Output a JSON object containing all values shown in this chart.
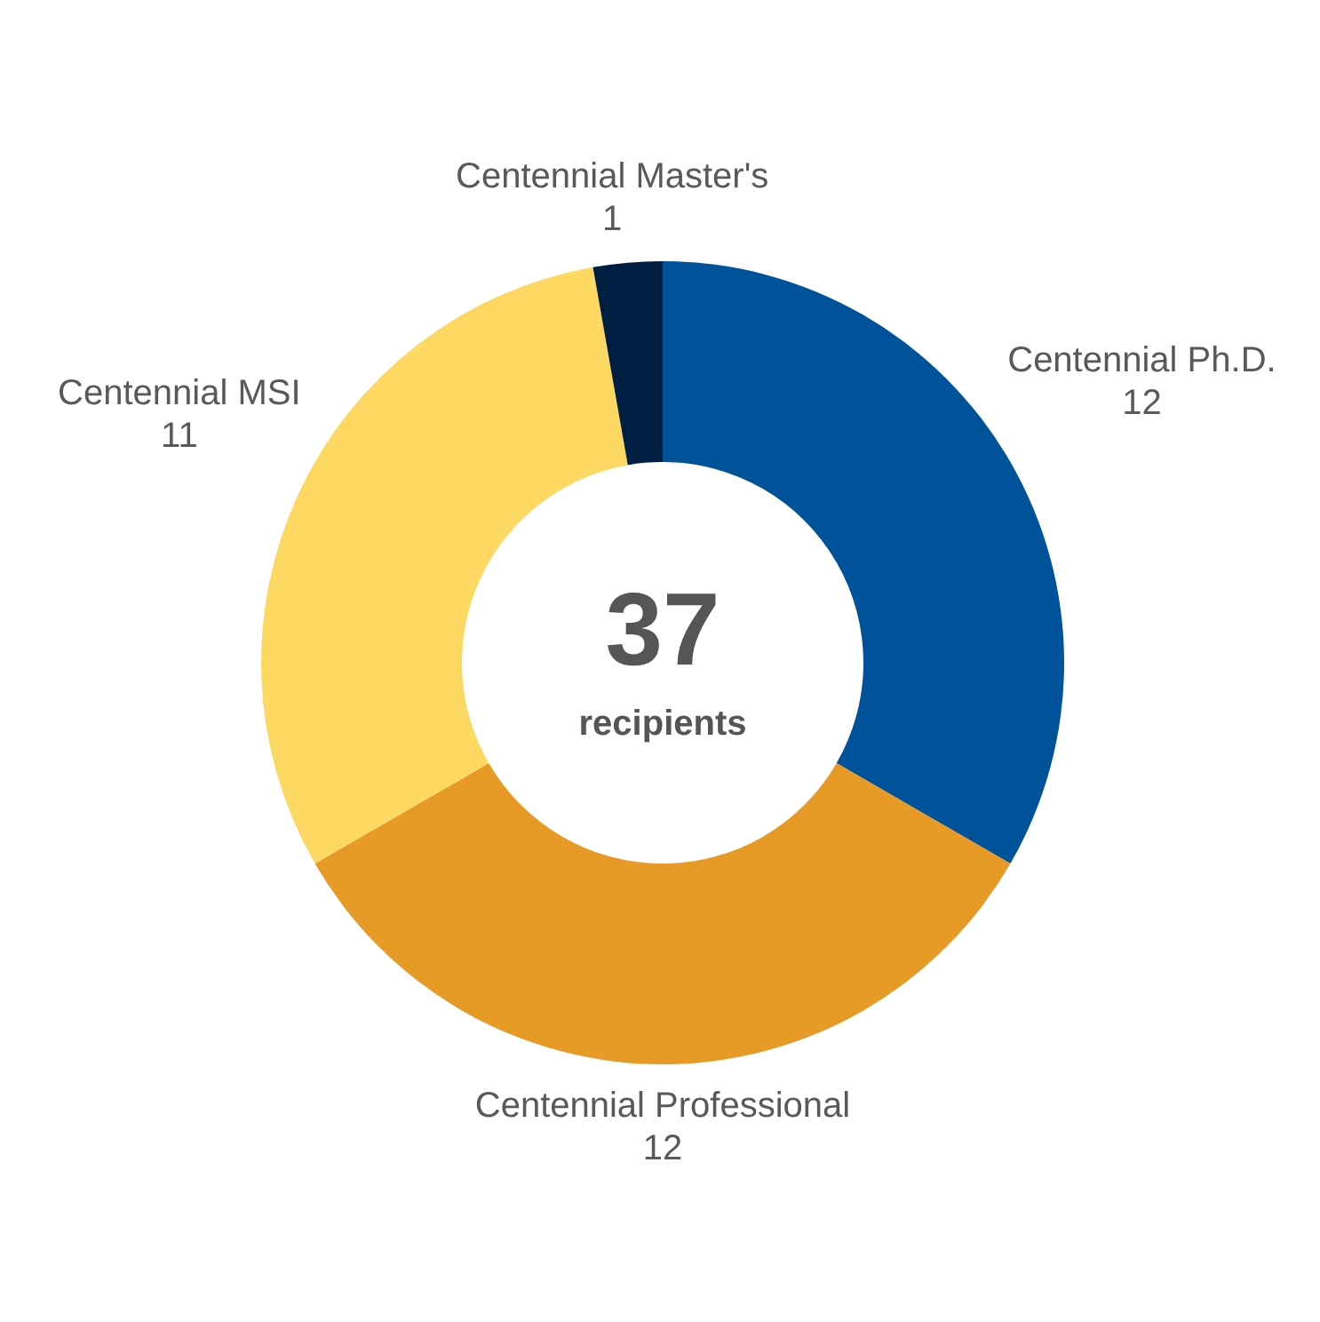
{
  "chart_data": {
    "type": "donut",
    "categories": [
      "Centennial Ph.D.",
      "Centennial Professional",
      "Centennial MSI",
      "Centennial Master's"
    ],
    "values": [
      12,
      12,
      11,
      1
    ],
    "colors": [
      "#00529b",
      "#e89a26",
      "#fdd862",
      "#001e41"
    ],
    "data_labels": true,
    "annotations": [
      "37",
      "recipients"
    ]
  }
}
